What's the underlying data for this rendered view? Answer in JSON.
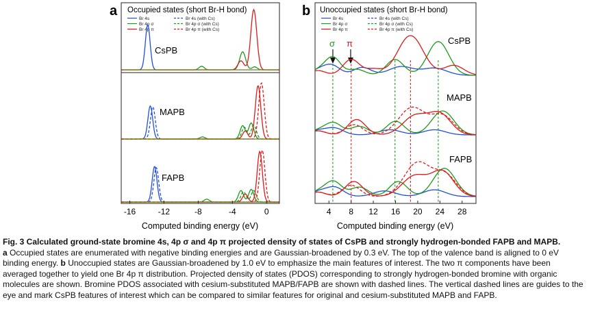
{
  "figure": {
    "panel_a": {
      "letter": "a",
      "title": "Occupied states (short Br-H bond)",
      "legend": [
        {
          "label": "Br 4s",
          "color": "#1f4fd8",
          "style": "solid"
        },
        {
          "label": "Br 4p σ",
          "color": "#1c9a1c",
          "style": "solid"
        },
        {
          "label": "Br 4p π",
          "color": "#e01818",
          "style": "solid"
        },
        {
          "label": "Br 4s (with Cs)",
          "color": "#1f4fd8",
          "style": "dashed"
        },
        {
          "label": "Br 4p σ (with Cs)",
          "color": "#1c9a1c",
          "style": "dashed"
        },
        {
          "label": "Br 4p π (with Cs)",
          "color": "#e01818",
          "style": "dashed"
        }
      ],
      "subpanel_labels": [
        "CsPB",
        "MAPB",
        "FAPB"
      ],
      "xlabel": "Computed binding energy (eV)",
      "xticks": [
        "-16",
        "-12",
        "-8",
        "-4",
        "0"
      ]
    },
    "panel_b": {
      "letter": "b",
      "title": "Unoccupied states (short Br-H bond)",
      "legend": [
        {
          "label": "Br 4s",
          "color": "#1f4fd8",
          "style": "solid"
        },
        {
          "label": "Br 4p σ",
          "color": "#1c9a1c",
          "style": "solid"
        },
        {
          "label": "Br 4p π",
          "color": "#e01818",
          "style": "solid"
        },
        {
          "label": "Br 4s (with Cs)",
          "color": "#1f4fd8",
          "style": "dashed"
        },
        {
          "label": "Br 4p σ (with Cs)",
          "color": "#1c9a1c",
          "style": "dashed"
        },
        {
          "label": "Br 4p π (with Cs)",
          "color": "#e01818",
          "style": "dashed"
        }
      ],
      "subpanel_labels": [
        "CsPB",
        "MAPB",
        "FAPB"
      ],
      "annotations": [
        {
          "text": "σ",
          "color": "#1c9a1c"
        },
        {
          "text": "π",
          "color": "#e01818"
        }
      ],
      "xlabel": "Computed binding energy (eV)",
      "xticks": [
        "4",
        "8",
        "12",
        "16",
        "20",
        "24",
        "28"
      ]
    }
  },
  "chart_data": [
    {
      "type": "line",
      "panel": "a",
      "title": "Occupied states (short Br-H bond)",
      "xlabel": "Computed binding energy (eV)",
      "xlim": [
        -17,
        1.5
      ],
      "xticks": [
        -16,
        -12,
        -8,
        -4,
        0
      ],
      "vertical_subpanels": [
        "CsPB",
        "MAPB",
        "FAPB"
      ],
      "peaks_description_units": "eV",
      "series": [
        {
          "name": "Br 4s",
          "subpanel": "CsPB",
          "peaks": [
            {
              "x": -13.9,
              "height": 0.75,
              "width": 0.28
            }
          ]
        },
        {
          "name": "Br 4p σ",
          "subpanel": "CsPB",
          "peaks": [
            {
              "x": -2.8,
              "height": 0.3,
              "width": 0.35
            },
            {
              "x": -7.6,
              "height": 0.06,
              "width": 0.3
            },
            {
              "x": -1.4,
              "height": 0.05,
              "width": 0.3
            }
          ]
        },
        {
          "name": "Br 4p π",
          "subpanel": "CsPB",
          "peaks": [
            {
              "x": -1.5,
              "height": 1.0,
              "width": 0.35
            },
            {
              "x": -3.0,
              "height": 0.15,
              "width": 0.35
            }
          ]
        },
        {
          "name": "Br 4s",
          "subpanel": "MAPB",
          "peaks": [
            {
              "x": -13.6,
              "height": 0.62,
              "width": 0.28
            }
          ]
        },
        {
          "name": "Br 4s (with Cs)",
          "subpanel": "MAPB",
          "peaks": [
            {
              "x": -13.3,
              "height": 0.6,
              "width": 0.28
            }
          ]
        },
        {
          "name": "Br 4p σ",
          "subpanel": "MAPB",
          "peaks": [
            {
              "x": -2.8,
              "height": 0.25,
              "width": 0.3
            },
            {
              "x": -1.8,
              "height": 0.3,
              "width": 0.3
            },
            {
              "x": -7.5,
              "height": 0.04,
              "width": 0.3
            }
          ]
        },
        {
          "name": "Br 4p σ (with Cs)",
          "subpanel": "MAPB",
          "peaks": [
            {
              "x": -2.6,
              "height": 0.22,
              "width": 0.3
            },
            {
              "x": -1.5,
              "height": 0.26,
              "width": 0.3
            }
          ]
        },
        {
          "name": "Br 4p π",
          "subpanel": "MAPB",
          "peaks": [
            {
              "x": -1.0,
              "height": 1.0,
              "width": 0.32
            },
            {
              "x": -2.5,
              "height": 0.15,
              "width": 0.3
            }
          ]
        },
        {
          "name": "Br 4p π (with Cs)",
          "subpanel": "MAPB",
          "peaks": [
            {
              "x": -0.6,
              "height": 1.05,
              "width": 0.32
            }
          ]
        },
        {
          "name": "Br 4s",
          "subpanel": "FAPB",
          "peaks": [
            {
              "x": -13.1,
              "height": 0.62,
              "width": 0.28
            }
          ]
        },
        {
          "name": "Br 4s (with Cs)",
          "subpanel": "FAPB",
          "peaks": [
            {
              "x": -12.9,
              "height": 0.6,
              "width": 0.28
            }
          ]
        },
        {
          "name": "Br 4p σ",
          "subpanel": "FAPB",
          "peaks": [
            {
              "x": -3.0,
              "height": 0.2,
              "width": 0.3
            },
            {
              "x": -1.8,
              "height": 0.22,
              "width": 0.3
            },
            {
              "x": -7.0,
              "height": 0.05,
              "width": 0.3
            }
          ]
        },
        {
          "name": "Br 4p σ (with Cs)",
          "subpanel": "FAPB",
          "peaks": [
            {
              "x": -2.7,
              "height": 0.18,
              "width": 0.3
            },
            {
              "x": -1.5,
              "height": 0.2,
              "width": 0.3
            }
          ]
        },
        {
          "name": "Br 4p π",
          "subpanel": "FAPB",
          "peaks": [
            {
              "x": -0.8,
              "height": 0.88,
              "width": 0.3
            },
            {
              "x": -2.5,
              "height": 0.14,
              "width": 0.3
            }
          ]
        },
        {
          "name": "Br 4p π (with Cs)",
          "subpanel": "FAPB",
          "peaks": [
            {
              "x": -0.5,
              "height": 0.9,
              "width": 0.3
            }
          ]
        }
      ]
    },
    {
      "type": "line",
      "panel": "b",
      "title": "Unoccupied states (short Br-H bond)",
      "xlabel": "Computed binding energy (eV)",
      "xlim": [
        1.5,
        30.5
      ],
      "xticks": [
        4,
        8,
        12,
        16,
        20,
        24,
        28
      ],
      "guide_lines_x": [
        {
          "x": 4.7,
          "color": "#1c9a1c"
        },
        {
          "x": 8.0,
          "color": "#e01818"
        },
        {
          "x": 15.9,
          "color": "#1c9a1c"
        },
        {
          "x": 18.7,
          "color": "#e01818"
        },
        {
          "x": 23.7,
          "color": "#1c9a1c"
        }
      ],
      "vertical_subpanels": [
        "CsPB",
        "MAPB",
        "FAPB"
      ],
      "series": [
        {
          "name": "Br 4s",
          "subpanel": "CsPB",
          "peaks": [
            {
              "x": 4.5,
              "height": 0.25,
              "width": 1.5
            },
            {
              "x": 10.0,
              "height": 0.2,
              "width": 1.6
            },
            {
              "x": 17.0,
              "height": 0.22,
              "width": 2.2
            },
            {
              "x": 23.0,
              "height": 0.18,
              "width": 2.2
            }
          ]
        },
        {
          "name": "Br 4p σ",
          "subpanel": "CsPB",
          "peaks": [
            {
              "x": 4.7,
              "height": 0.45,
              "width": 1.4
            },
            {
              "x": 9.0,
              "height": 0.15,
              "width": 1.5
            },
            {
              "x": 15.9,
              "height": 0.4,
              "width": 1.6
            },
            {
              "x": 23.7,
              "height": 0.85,
              "width": 1.9
            }
          ]
        },
        {
          "name": "Br 4p π",
          "subpanel": "CsPB",
          "peaks": [
            {
              "x": 8.0,
              "height": 0.4,
              "width": 1.5
            },
            {
              "x": 12.0,
              "height": 0.15,
              "width": 1.5
            },
            {
              "x": 18.7,
              "height": 1.0,
              "width": 2.3
            },
            {
              "x": 26.5,
              "height": 0.25,
              "width": 1.8
            }
          ]
        },
        {
          "name": "Br 4s",
          "subpanel": "MAPB",
          "peaks": [
            {
              "x": 5.0,
              "height": 0.2,
              "width": 1.6
            },
            {
              "x": 15.0,
              "height": 0.15,
              "width": 2
            },
            {
              "x": 23.0,
              "height": 0.15,
              "width": 2
            }
          ]
        },
        {
          "name": "Br 4p σ",
          "subpanel": "MAPB",
          "peaks": [
            {
              "x": 4.8,
              "height": 0.35,
              "width": 1.5
            },
            {
              "x": 9.5,
              "height": 0.25,
              "width": 1.6
            },
            {
              "x": 16.0,
              "height": 0.4,
              "width": 1.6
            },
            {
              "x": 24.5,
              "height": 0.7,
              "width": 2.0
            }
          ]
        },
        {
          "name": "Br 4p π",
          "subpanel": "MAPB",
          "peaks": [
            {
              "x": 9.0,
              "height": 0.45,
              "width": 1.6
            },
            {
              "x": 19.5,
              "height": 0.55,
              "width": 2.2
            },
            {
              "x": 24.0,
              "height": 0.6,
              "width": 2.0
            }
          ]
        },
        {
          "name": "Br 4p π (with Cs)",
          "subpanel": "MAPB",
          "peaks": [
            {
              "x": 8.5,
              "height": 0.3,
              "width": 1.6
            },
            {
              "x": 19.0,
              "height": 0.8,
              "width": 2.4
            },
            {
              "x": 24.5,
              "height": 0.55,
              "width": 2.0
            }
          ]
        },
        {
          "name": "Br 4s",
          "subpanel": "FAPB",
          "peaks": [
            {
              "x": 5.0,
              "height": 0.25,
              "width": 1.6
            },
            {
              "x": 14.0,
              "height": 0.15,
              "width": 2.0
            },
            {
              "x": 23.0,
              "height": 0.18,
              "width": 2.0
            }
          ]
        },
        {
          "name": "Br 4p σ",
          "subpanel": "FAPB",
          "peaks": [
            {
              "x": 4.8,
              "height": 0.4,
              "width": 1.5
            },
            {
              "x": 9.5,
              "height": 0.25,
              "width": 1.6
            },
            {
              "x": 16.5,
              "height": 0.4,
              "width": 1.6
            },
            {
              "x": 24.8,
              "height": 0.75,
              "width": 2.0
            }
          ]
        },
        {
          "name": "Br 4p π",
          "subpanel": "FAPB",
          "peaks": [
            {
              "x": 8.5,
              "height": 0.4,
              "width": 1.6
            },
            {
              "x": 19.5,
              "height": 0.55,
              "width": 2.3
            },
            {
              "x": 24.5,
              "height": 0.65,
              "width": 2.0
            }
          ]
        },
        {
          "name": "Br 4p π (with Cs)",
          "subpanel": "FAPB",
          "peaks": [
            {
              "x": 8.0,
              "height": 0.3,
              "width": 1.6
            },
            {
              "x": 20.0,
              "height": 0.9,
              "width": 2.4
            },
            {
              "x": 25.0,
              "height": 0.55,
              "width": 2.0
            }
          ]
        }
      ]
    }
  ],
  "caption": {
    "title": "Fig. 3 Calculated ground-state bromine 4s, 4p σ and 4p π projected density of states of CsPB and strongly hydrogen-bonded FAPB and MAPB.",
    "part_a_letter": "a",
    "part_a_text": " Occupied states are enumerated with negative binding energies and are Gaussian-broadened by 0.3 eV. The top of the valence band is aligned to 0 eV binding energy. ",
    "part_b_letter": "b",
    "part_b_text": " Unoccupied states are Gaussian-broadened by 1.0 eV to emphasize the main features of interest. The two π components have been averaged together to yield one Br 4p π distribution. Projected density of states (PDOS) corresponding to strongly hydrogen-bonded bromine with organic molecules are shown. Bromine PDOS associated with cesium-substituted MAPB/FAPB are shown with dashed lines. The vertical dashed lines are guides to the eye and mark CsPB features of interest which can be compared to similar features for original and cesium-substituted MAPB and FAPB."
  }
}
